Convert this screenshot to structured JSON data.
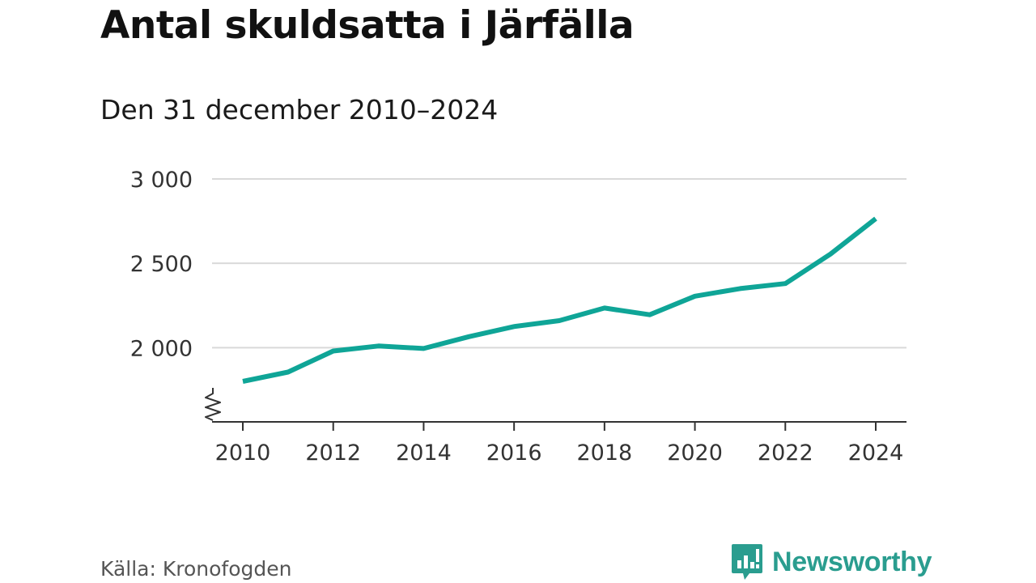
{
  "header": {
    "title": "Antal skuldsatta i Järfälla",
    "subtitle": "Den 31 december 2010–2024"
  },
  "footer": {
    "source": "Källa: Kronofogden",
    "brand": "Newsworthy"
  },
  "colors": {
    "line": "#0fa597",
    "grid": "#d9d9d9",
    "axis": "#333333",
    "brand": "#2a9d8f"
  },
  "chart_data": {
    "type": "line",
    "title": "Antal skuldsatta i Järfälla",
    "subtitle": "Den 31 december 2010–2024",
    "xlabel": "",
    "ylabel": "",
    "x": [
      2010,
      2011,
      2012,
      2013,
      2014,
      2015,
      2016,
      2017,
      2018,
      2019,
      2020,
      2021,
      2022,
      2023,
      2024
    ],
    "series": [
      {
        "name": "Antal skuldsatta",
        "values": [
          1800,
          1855,
          1980,
          2010,
          1995,
          2065,
          2125,
          2160,
          2235,
          2195,
          2305,
          2350,
          2380,
          2555,
          2765
        ]
      }
    ],
    "xlim": [
      2010,
      2024
    ],
    "ylim": [
      1560,
      3000
    ],
    "xticks": [
      2010,
      2012,
      2014,
      2016,
      2018,
      2020,
      2022,
      2024
    ],
    "xtick_labels": [
      "2010",
      "2012",
      "2014",
      "2016",
      "2018",
      "2020",
      "2022",
      "2024"
    ],
    "yticks": [
      2000,
      2500,
      3000
    ],
    "ytick_labels": [
      "2 000",
      "2 500",
      "3 000"
    ],
    "axis_break": true,
    "grid": true,
    "legend": "none"
  }
}
